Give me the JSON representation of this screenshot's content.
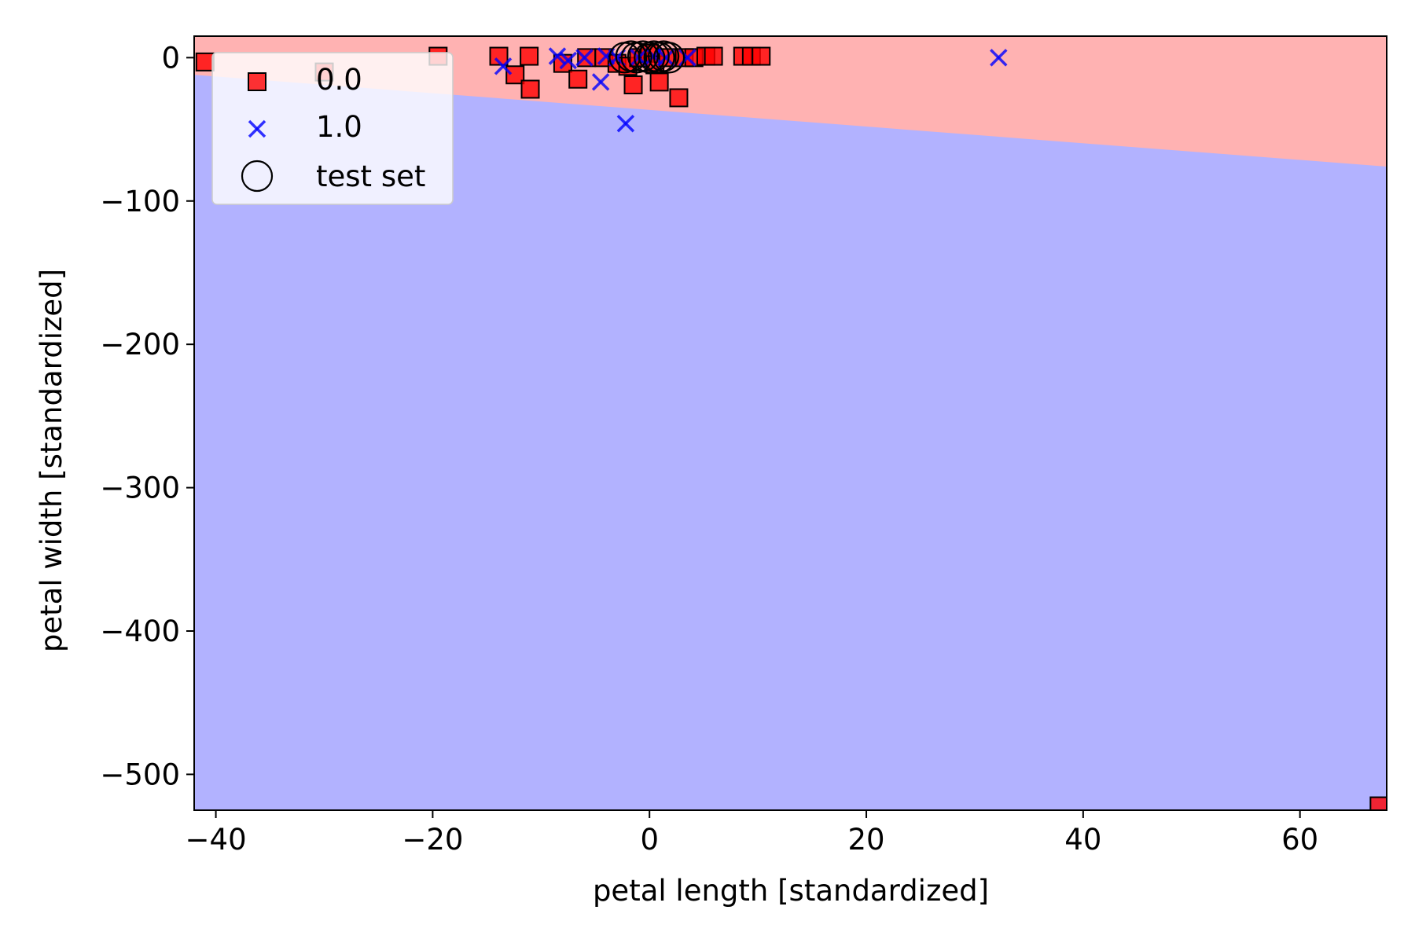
{
  "chart_data": {
    "type": "scatter",
    "title": "",
    "xlabel": "petal length [standardized]",
    "ylabel": "petal width [standardized]",
    "xlim": [
      -42,
      68
    ],
    "ylim": [
      -525,
      15
    ],
    "xticks": [
      -40,
      -20,
      0,
      20,
      40,
      60
    ],
    "yticks": [
      0,
      -100,
      -200,
      -300,
      -400,
      -500
    ],
    "xtick_labels": [
      "−40",
      "−20",
      "0",
      "20",
      "40",
      "60"
    ],
    "ytick_labels": [
      "0",
      "−100",
      "−200",
      "−300",
      "−400",
      "−500"
    ],
    "grid": false,
    "legend_position": "upper-left",
    "decision_regions": [
      {
        "class": "0.0",
        "color": "#ffb2b2",
        "region": "above boundary line"
      },
      {
        "class": "1.0",
        "color": "#b2b2ff",
        "region": "below boundary line"
      }
    ],
    "decision_boundary": [
      [
        -42,
        -12
      ],
      [
        68,
        -76
      ]
    ],
    "series": [
      {
        "name": "0.0",
        "marker": "square",
        "color": "#ff0000",
        "points": [
          [
            -41,
            -3
          ],
          [
            -30,
            -10
          ],
          [
            -19.5,
            1
          ],
          [
            -13.9,
            1
          ],
          [
            -12.4,
            -12
          ],
          [
            -11.1,
            1
          ],
          [
            -11,
            -22
          ],
          [
            -8,
            -4
          ],
          [
            -6.6,
            -15
          ],
          [
            -5.8,
            0
          ],
          [
            -4.2,
            0
          ],
          [
            -3,
            -4
          ],
          [
            -2,
            -6
          ],
          [
            -1.5,
            -19
          ],
          [
            -1,
            0
          ],
          [
            0,
            3
          ],
          [
            0.5,
            -5
          ],
          [
            0.9,
            -17
          ],
          [
            1.7,
            0
          ],
          [
            2.7,
            -28
          ],
          [
            3.2,
            0
          ],
          [
            4.1,
            0
          ],
          [
            5.2,
            1
          ],
          [
            5.9,
            1
          ],
          [
            8.6,
            1
          ],
          [
            9.4,
            1
          ],
          [
            10.3,
            1
          ],
          [
            67.3,
            -522
          ]
        ]
      },
      {
        "name": "1.0",
        "marker": "x",
        "color": "#0000ff",
        "points": [
          [
            -13.5,
            -6
          ],
          [
            -8.5,
            1
          ],
          [
            -7.5,
            -2
          ],
          [
            -6,
            0
          ],
          [
            -4.5,
            -17
          ],
          [
            -4,
            1
          ],
          [
            -3,
            0
          ],
          [
            -2.2,
            -46
          ],
          [
            -1,
            0
          ],
          [
            0.4,
            1
          ],
          [
            1.5,
            0
          ],
          [
            3.5,
            0
          ],
          [
            32.2,
            0
          ]
        ]
      },
      {
        "name": "test set",
        "marker": "circle",
        "color": "#000000",
        "points": [
          [
            -2.3,
            0
          ],
          [
            -1.7,
            1
          ],
          [
            -1.2,
            0
          ],
          [
            -0.6,
            1
          ],
          [
            0,
            0
          ],
          [
            0.4,
            1
          ],
          [
            0.9,
            0
          ],
          [
            1.3,
            1
          ],
          [
            1.8,
            0
          ]
        ]
      }
    ],
    "legend": [
      {
        "label": "0.0",
        "marker": "square",
        "color": "#ff0000"
      },
      {
        "label": "1.0",
        "marker": "x",
        "color": "#0000ff"
      },
      {
        "label": "test set",
        "marker": "circle",
        "color": "#000000"
      }
    ]
  }
}
